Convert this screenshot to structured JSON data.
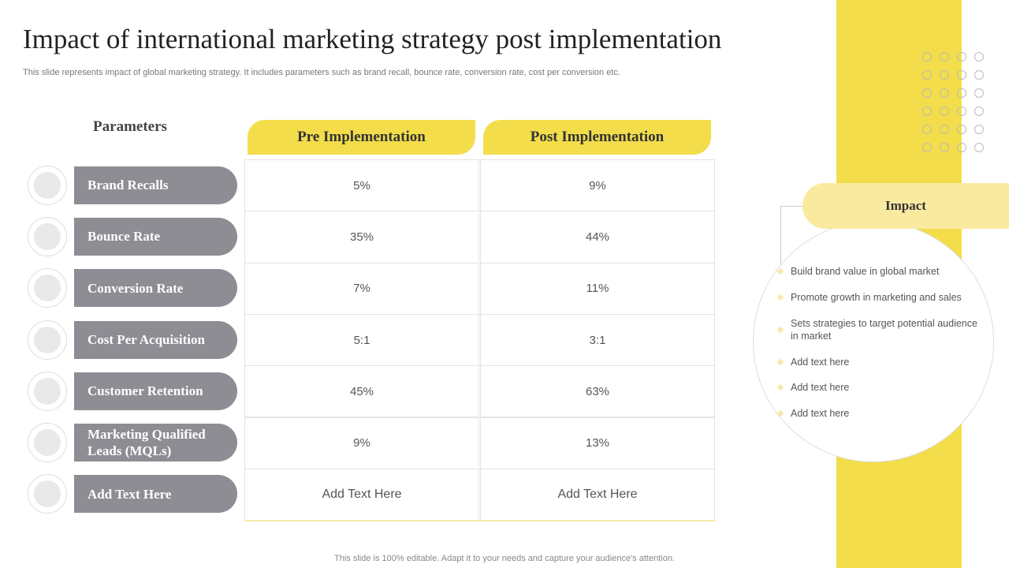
{
  "title": "Impact of international marketing strategy post implementation",
  "subtitle": "This slide represents impact of global marketing strategy. It includes parameters such as brand recall, bounce rate, conversion rate, cost per conversion etc.",
  "table": {
    "parameters_header": "Parameters",
    "columns": [
      "Pre Implementation",
      "Post Implementation"
    ],
    "rows": [
      [
        "Brand Recalls",
        "5%",
        "9%"
      ],
      [
        "Bounce Rate",
        "35%",
        "44%"
      ],
      [
        "Conversion Rate",
        "7%",
        "11%"
      ],
      [
        "Cost Per Acquisition",
        "5:1",
        "3:1"
      ],
      [
        "Customer Retention",
        "45%",
        "63%"
      ],
      [
        "Marketing Qualified Leads (MQLs)",
        "9%",
        "13%"
      ],
      [
        "Add Text Here",
        "Add Text Here",
        "Add Text Here"
      ]
    ]
  },
  "impact": {
    "title": "Impact",
    "items": [
      "Build brand value in global market",
      "Promote growth in marketing and sales",
      "Sets strategies to target potential audience in market",
      "Add text here",
      "Add text here",
      "Add text here"
    ]
  },
  "footer": "This slide is 100% editable. Adapt it to your needs and capture your audience's attention."
}
